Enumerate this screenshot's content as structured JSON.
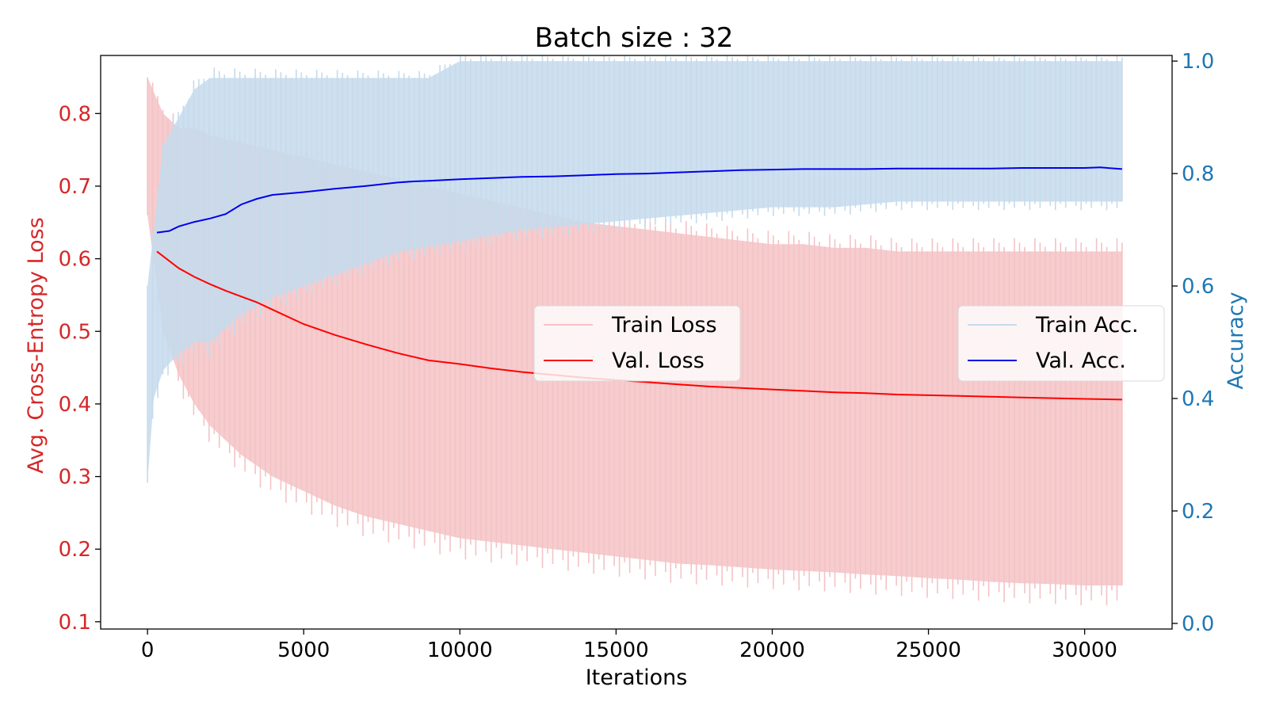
{
  "chart_data": {
    "type": "line",
    "title": "Batch size : 32",
    "xlabel": "Iterations",
    "ylabel_left": "Avg. Cross-Entropy Loss",
    "ylabel_right": "Accuracy",
    "xlim": [
      -1500,
      32800
    ],
    "ylim_left": [
      0.09,
      0.88
    ],
    "ylim_right": [
      -0.01,
      1.01
    ],
    "x_ticks": [
      0,
      5000,
      10000,
      15000,
      20000,
      25000,
      30000
    ],
    "x_tick_labels": [
      "0",
      "5000",
      "10000",
      "15000",
      "20000",
      "25000",
      "30000"
    ],
    "y_left_ticks": [
      0.1,
      0.2,
      0.3,
      0.4,
      0.5,
      0.6,
      0.7,
      0.8
    ],
    "y_left_tick_labels": [
      "0.1",
      "0.2",
      "0.3",
      "0.4",
      "0.5",
      "0.6",
      "0.7",
      "0.8"
    ],
    "y_right_ticks": [
      0.0,
      0.2,
      0.4,
      0.6,
      0.8,
      1.0
    ],
    "y_right_tick_labels": [
      "0.0",
      "0.2",
      "0.4",
      "0.6",
      "0.8",
      "1.0"
    ],
    "colors": {
      "left_axis": "#d62728",
      "right_axis": "#1f77b4",
      "train_loss": "#f4c3c5",
      "val_loss": "#ff0000",
      "train_acc": "#c5dbec",
      "val_acc": "#0000ee"
    },
    "legend_left": {
      "placement": "center",
      "items": [
        "Train Loss",
        "Val. Loss"
      ]
    },
    "legend_right": {
      "placement": "center-right",
      "items": [
        "Train Acc.",
        "Val. Acc."
      ]
    },
    "series": [
      {
        "name": "Train Loss",
        "axis": "left",
        "style": "band",
        "x": [
          0,
          500,
          1000,
          1500,
          2000,
          3000,
          4000,
          5000,
          6000,
          7000,
          8000,
          9000,
          10000,
          11000,
          12000,
          13000,
          14000,
          15000,
          16000,
          17000,
          18000,
          19000,
          20000,
          21000,
          22000,
          23000,
          24000,
          25000,
          26000,
          27000,
          28000,
          29000,
          30000,
          31200
        ],
        "lower": [
          0.66,
          0.5,
          0.44,
          0.4,
          0.37,
          0.33,
          0.3,
          0.28,
          0.26,
          0.245,
          0.235,
          0.225,
          0.215,
          0.21,
          0.205,
          0.2,
          0.195,
          0.19,
          0.185,
          0.18,
          0.178,
          0.175,
          0.172,
          0.17,
          0.168,
          0.165,
          0.163,
          0.16,
          0.158,
          0.155,
          0.153,
          0.152,
          0.15,
          0.15
        ],
        "upper": [
          0.85,
          0.8,
          0.78,
          0.78,
          0.77,
          0.76,
          0.75,
          0.74,
          0.73,
          0.72,
          0.71,
          0.7,
          0.69,
          0.68,
          0.67,
          0.66,
          0.65,
          0.645,
          0.64,
          0.635,
          0.63,
          0.625,
          0.62,
          0.62,
          0.615,
          0.615,
          0.61,
          0.61,
          0.61,
          0.61,
          0.61,
          0.61,
          0.61,
          0.61
        ],
        "spikes": 190
      },
      {
        "name": "Val. Loss",
        "axis": "left",
        "style": "line",
        "x": [
          300,
          1000,
          1500,
          2000,
          2500,
          3000,
          3500,
          4000,
          5000,
          6000,
          7000,
          8000,
          9000,
          10000,
          11000,
          12000,
          13000,
          14000,
          15000,
          16000,
          17000,
          18000,
          19000,
          20000,
          21000,
          22000,
          23000,
          24000,
          25000,
          26000,
          27000,
          28000,
          29000,
          30000,
          31200
        ],
        "y": [
          0.61,
          0.587,
          0.575,
          0.565,
          0.556,
          0.548,
          0.54,
          0.53,
          0.51,
          0.495,
          0.482,
          0.47,
          0.46,
          0.455,
          0.449,
          0.444,
          0.44,
          0.436,
          0.433,
          0.43,
          0.427,
          0.424,
          0.422,
          0.42,
          0.418,
          0.416,
          0.415,
          0.413,
          0.412,
          0.411,
          0.41,
          0.409,
          0.408,
          0.407,
          0.406
        ]
      },
      {
        "name": "Train Acc.",
        "axis": "right",
        "style": "band",
        "x": [
          0,
          200,
          500,
          1000,
          1500,
          2000,
          3000,
          4000,
          5000,
          6000,
          7000,
          8000,
          9000,
          10000,
          12000,
          14000,
          16000,
          18000,
          20000,
          22000,
          24000,
          26000,
          28000,
          30000,
          31200
        ],
        "lower": [
          0.25,
          0.4,
          0.45,
          0.48,
          0.5,
          0.5,
          0.55,
          0.58,
          0.6,
          0.62,
          0.64,
          0.66,
          0.67,
          0.68,
          0.7,
          0.71,
          0.72,
          0.73,
          0.74,
          0.74,
          0.75,
          0.75,
          0.75,
          0.75,
          0.75
        ],
        "upper": [
          0.6,
          0.7,
          0.85,
          0.9,
          0.95,
          0.97,
          0.97,
          0.97,
          0.97,
          0.97,
          0.97,
          0.97,
          0.97,
          1.0,
          1.0,
          1.0,
          1.0,
          1.0,
          1.0,
          1.0,
          1.0,
          1.0,
          1.0,
          1.0,
          1.0
        ],
        "spikes": 190
      },
      {
        "name": "Val. Acc.",
        "axis": "right",
        "style": "line",
        "x": [
          300,
          700,
          1000,
          1500,
          2000,
          2500,
          3000,
          3500,
          4000,
          5000,
          5500,
          6000,
          7000,
          8000,
          8500,
          9000,
          10000,
          11000,
          12000,
          13000,
          14000,
          15000,
          16000,
          17000,
          18000,
          19000,
          20000,
          21000,
          22000,
          23000,
          24000,
          25000,
          26000,
          27000,
          28000,
          29000,
          30000,
          30500,
          31200
        ],
        "y": [
          0.695,
          0.698,
          0.706,
          0.714,
          0.72,
          0.728,
          0.745,
          0.755,
          0.762,
          0.767,
          0.77,
          0.773,
          0.778,
          0.784,
          0.786,
          0.787,
          0.79,
          0.792,
          0.794,
          0.795,
          0.797,
          0.799,
          0.8,
          0.802,
          0.804,
          0.806,
          0.807,
          0.808,
          0.808,
          0.808,
          0.809,
          0.809,
          0.809,
          0.809,
          0.81,
          0.81,
          0.81,
          0.811,
          0.808
        ]
      }
    ]
  }
}
